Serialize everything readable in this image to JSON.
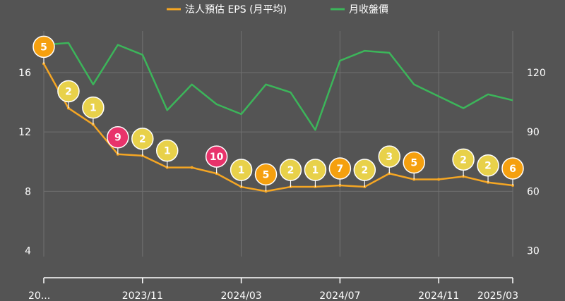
{
  "chart_data": {
    "type": "line",
    "legend": [
      {
        "label": "法人預估 EPS (月平均)",
        "color": "#f5a623"
      },
      {
        "label": "月收盤價",
        "color": "#3cb55a"
      }
    ],
    "x_tick_labels": [
      "20...",
      "2023/11",
      "2024/03",
      "2024/07",
      "2024/11",
      "2025/03"
    ],
    "y_left_ticks": [
      4,
      8,
      12,
      16
    ],
    "y_left_range": [
      3.6,
      18.8
    ],
    "y_right_ticks": [
      30,
      90,
      120
    ],
    "y_right_label_60": "60",
    "y_right_range": [
      27,
      141
    ],
    "colors": {
      "eps": "#f5a623",
      "price": "#3cb55a",
      "grid": "#707070",
      "text": "#ffffff"
    },
    "series": [
      {
        "name": "法人預估 EPS (月平均)",
        "values": [
          16.6,
          13.6,
          12.5,
          10.5,
          10.4,
          9.6,
          9.6,
          9.2,
          8.3,
          8.0,
          8.3,
          8.3,
          8.4,
          8.3,
          9.2,
          8.8,
          8.8,
          9.0,
          8.6,
          8.4
        ]
      },
      {
        "name": "月收盤價",
        "values": [
          134,
          135,
          114,
          134,
          129,
          101,
          114,
          104,
          99,
          114,
          110,
          91,
          126,
          131,
          130,
          114,
          108,
          102,
          109,
          106
        ]
      }
    ],
    "pins": [
      {
        "i": 0,
        "label": "5",
        "color": "#f5a00f"
      },
      {
        "i": 1,
        "label": "2",
        "color": "#e8d14a"
      },
      {
        "i": 2,
        "label": "1",
        "color": "#e8d14a"
      },
      {
        "i": 3,
        "label": "9",
        "color": "#e8336b"
      },
      {
        "i": 4,
        "label": "2",
        "color": "#e8d14a"
      },
      {
        "i": 5,
        "label": "1",
        "color": "#e8d14a"
      },
      {
        "i": 7,
        "label": "10",
        "color": "#e8336b"
      },
      {
        "i": 8,
        "label": "1",
        "color": "#e8d14a"
      },
      {
        "i": 9,
        "label": "5",
        "color": "#f5a00f"
      },
      {
        "i": 10,
        "label": "2",
        "color": "#e8d14a"
      },
      {
        "i": 11,
        "label": "1",
        "color": "#e8d14a"
      },
      {
        "i": 12,
        "label": "7",
        "color": "#f5a00f"
      },
      {
        "i": 13,
        "label": "2",
        "color": "#e8d14a"
      },
      {
        "i": 14,
        "label": "3",
        "color": "#e8d14a"
      },
      {
        "i": 15,
        "label": "5",
        "color": "#f5a00f"
      },
      {
        "i": 17,
        "label": "2",
        "color": "#e8d14a"
      },
      {
        "i": 18,
        "label": "2",
        "color": "#e8d14a"
      },
      {
        "i": 19,
        "label": "6",
        "color": "#f5a00f"
      }
    ]
  }
}
